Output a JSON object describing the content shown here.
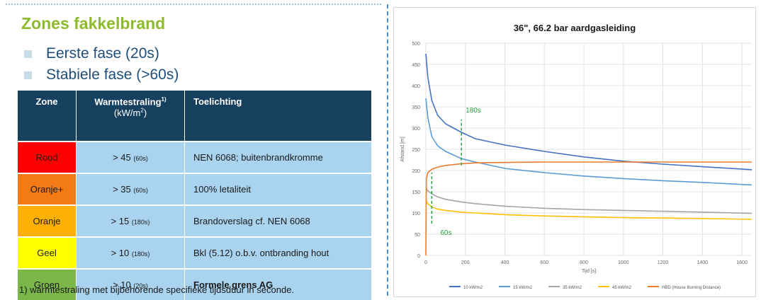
{
  "slide": {
    "title": "Zones fakkelbrand",
    "bullets": [
      "Eerste fase (20s)",
      "Stabiele fase (>60s)"
    ],
    "table": {
      "headers": {
        "zone": "Zone",
        "radiation_main": "Warmtestraling",
        "radiation_sup": "1)",
        "radiation_unit_pre": "(kW/m",
        "radiation_unit_sup": "2",
        "radiation_unit_post": ")",
        "explanation": "Toelichting"
      },
      "rows": [
        {
          "zone": "Rood",
          "value": "> 45",
          "duration": "(60s)",
          "explanation": "NEN 6068; buitenbrandkromme",
          "color": "#ff0000"
        },
        {
          "zone": "Oranje+",
          "value": "> 35",
          "duration": "(60s)",
          "explanation": "100% letaliteit",
          "color": "#f47a16"
        },
        {
          "zone": "Oranje",
          "value": "> 15",
          "duration": "(180s)",
          "explanation": "Brandoverslag cf. NEN 6068",
          "color": "#ffb000"
        },
        {
          "zone": "Geel",
          "value": "> 10",
          "duration": "(180s)",
          "explanation": "Bkl (5.12) o.b.v. ontbranding hout",
          "color": "#ffff00"
        },
        {
          "zone": "Groen",
          "value": "> 10",
          "duration": "(20s)",
          "explanation": "Formele grens AG",
          "color": "#7ab648"
        }
      ]
    },
    "footnote": "1) warmtestraling met bijbehorende specifieke tijdsduur in seconde."
  },
  "chart_data": {
    "type": "line",
    "title": "36\", 66.2 bar aardgasleiding",
    "xlabel": "Tijd [s]",
    "ylabel": "Afstand [m]",
    "xlim": [
      0,
      1650
    ],
    "ylim": [
      0,
      500
    ],
    "x_ticks": [
      0,
      200,
      400,
      600,
      800,
      1000,
      1200,
      1400,
      1600
    ],
    "y_ticks": [
      0,
      50,
      100,
      150,
      200,
      250,
      300,
      350,
      400,
      450,
      500
    ],
    "grid": true,
    "legend_position": "bottom",
    "annotations": [
      {
        "text": "180s",
        "x": 180,
        "y_from": 212,
        "y_to": 320
      },
      {
        "text": "60s",
        "x": 30,
        "y_from": 75,
        "y_to": 195
      }
    ],
    "series": [
      {
        "name": "10 kW/m2",
        "color": "#4472c4",
        "x": [
          0,
          10,
          30,
          60,
          100,
          180,
          250,
          400,
          600,
          800,
          1000,
          1200,
          1400,
          1650
        ],
        "y": [
          475,
          420,
          365,
          330,
          310,
          290,
          275,
          260,
          245,
          232,
          222,
          215,
          209,
          202
        ]
      },
      {
        "name": "15 kW/m2",
        "color": "#5b9bd5",
        "x": [
          0,
          10,
          30,
          60,
          100,
          180,
          250,
          400,
          600,
          800,
          1000,
          1200,
          1400,
          1650
        ],
        "y": [
          370,
          325,
          280,
          258,
          245,
          228,
          220,
          205,
          195,
          187,
          181,
          176,
          172,
          166
        ]
      },
      {
        "name": "35 kW/m2",
        "color": "#a5a5a5",
        "x": [
          0,
          10,
          30,
          60,
          100,
          180,
          250,
          400,
          600,
          800,
          1000,
          1200,
          1400,
          1650
        ],
        "y": [
          160,
          152,
          145,
          138,
          132,
          126,
          122,
          116,
          111,
          108,
          106,
          104,
          102,
          99
        ]
      },
      {
        "name": "45 kW/m2",
        "color": "#ffc000",
        "x": [
          0,
          10,
          30,
          60,
          100,
          180,
          250,
          400,
          600,
          800,
          1000,
          1200,
          1400,
          1650
        ],
        "y": [
          130,
          122,
          114,
          109,
          106,
          102,
          100,
          96,
          93,
          91,
          89,
          88,
          87,
          85
        ]
      },
      {
        "name": "HBD (House Burning Distance)",
        "color": "#ed7d31",
        "x": [
          0,
          2,
          10,
          30,
          60,
          100,
          180,
          250,
          400,
          600,
          800,
          1000,
          1200,
          1400,
          1650
        ],
        "y": [
          0,
          180,
          195,
          203,
          208,
          212,
          216,
          218,
          219,
          220,
          220,
          220,
          220,
          220,
          220
        ]
      }
    ]
  }
}
